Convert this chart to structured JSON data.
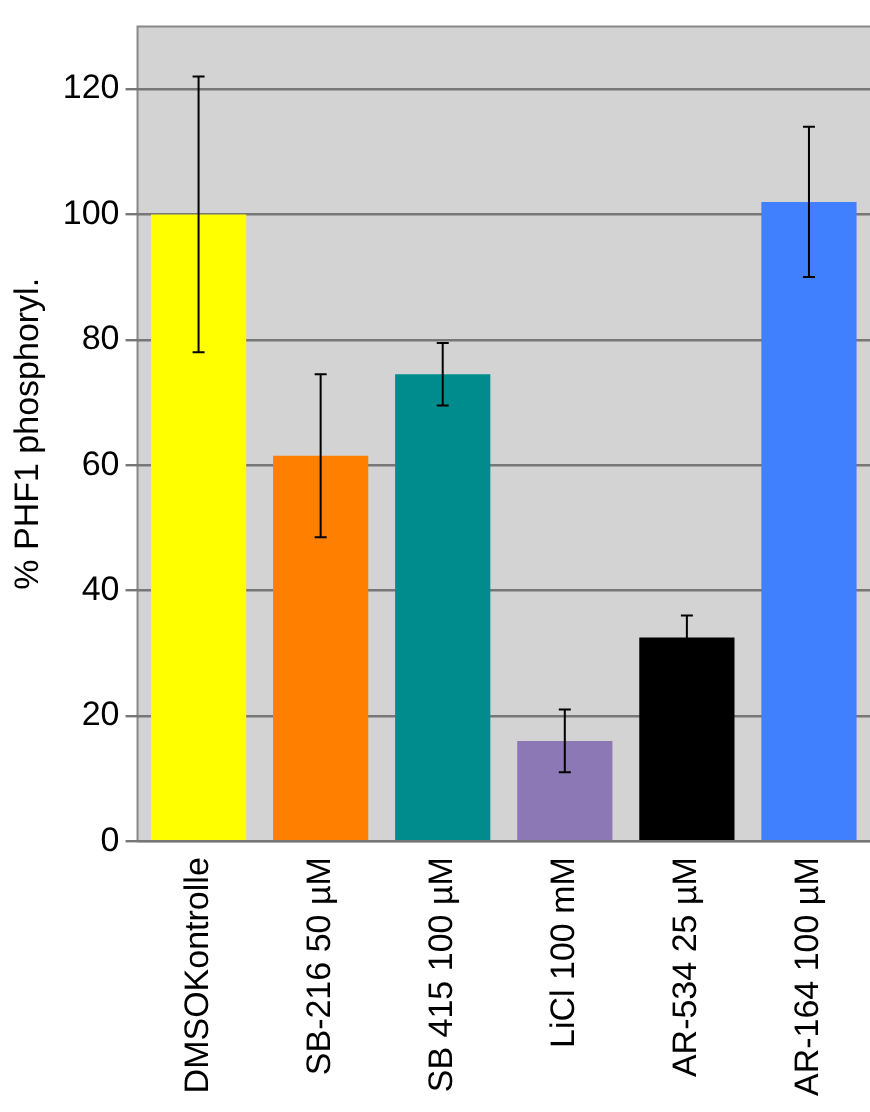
{
  "chart_data": {
    "type": "bar",
    "ylabel": "% PHF1 phosphoryl.",
    "categories": [
      "DMSOKontrolle",
      "SB-216 50 µM",
      "SB 415 100 µM",
      "LiCl 100 mM",
      "AR-534 25 µM",
      "AR-164 100 µM"
    ],
    "values": [
      100,
      61.5,
      74.5,
      16,
      32.5,
      102
    ],
    "errors": [
      22,
      13,
      5,
      5,
      3.5,
      12
    ],
    "colors": [
      "#ffff00",
      "#ff7f00",
      "#008c8c",
      "#8c78b4",
      "#000000",
      "#4080ff"
    ],
    "ylim": [
      0,
      130
    ],
    "yticks": [
      0,
      20,
      40,
      60,
      80,
      100,
      120
    ],
    "grid": "y"
  }
}
